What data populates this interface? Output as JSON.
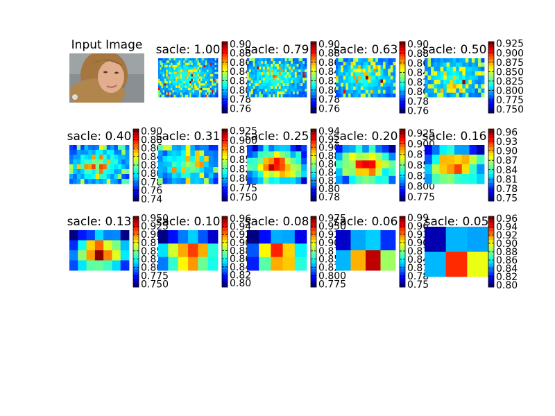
{
  "colormap": "jet",
  "input_panel": {
    "title": "Input Image",
    "image": "portrait photo of a young woman with long blonde hair looking down",
    "colors": {
      "background": "#8a8f93",
      "hair": "#a5773f",
      "skin": "#e2ae8e"
    }
  },
  "chart_data": [
    {
      "type": "heatmap",
      "title": "sacle: 1.00",
      "seed": 11,
      "grid": [
        38,
        17
      ],
      "kind": "edges",
      "colorbar": {
        "range": [
          0.75,
          0.905
        ],
        "ticks": [
          "0.90",
          "0.88",
          "0.86",
          "0.84",
          "0.82",
          "0.80",
          "0.78",
          "0.76"
        ]
      }
    },
    {
      "type": "heatmap",
      "title": "sacle: 0.79",
      "seed": 12,
      "grid": [
        30,
        14
      ],
      "kind": "edges",
      "colorbar": {
        "range": [
          0.75,
          0.905
        ],
        "ticks": [
          "0.90",
          "0.88",
          "0.86",
          "0.84",
          "0.82",
          "0.80",
          "0.78",
          "0.76"
        ]
      }
    },
    {
      "type": "heatmap",
      "title": "sacle: 0.63",
      "seed": 13,
      "grid": [
        24,
        11
      ],
      "kind": "edges",
      "colorbar": {
        "range": [
          0.755,
          0.905
        ],
        "ticks": [
          "0.90",
          "0.88",
          "0.86",
          "0.84",
          "0.82",
          "0.80",
          "0.78",
          "0.76"
        ]
      }
    },
    {
      "type": "heatmap",
      "title": "sacle: 0.50",
      "seed": 14,
      "grid": [
        19,
        9
      ],
      "kind": "edges",
      "colorbar": {
        "range": [
          0.74,
          0.93
        ],
        "ticks": [
          "0.925",
          "0.900",
          "0.875",
          "0.850",
          "0.825",
          "0.800",
          "0.775",
          "0.750"
        ]
      }
    },
    {
      "type": "heatmap",
      "title": "sacle: 0.40",
      "seed": 15,
      "grid": [
        16,
        8
      ],
      "kind": "mixed",
      "colorbar": {
        "range": [
          0.735,
          0.905
        ],
        "ticks": [
          "0.90",
          "0.88",
          "0.86",
          "0.84",
          "0.82",
          "0.80",
          "0.78",
          "0.76",
          "0.74"
        ]
      }
    },
    {
      "type": "heatmap",
      "title": "sacle: 0.31",
      "seed": 16,
      "grid": [
        13,
        7
      ],
      "kind": "mixed",
      "colorbar": {
        "range": [
          0.74,
          0.93
        ],
        "ticks": [
          "0.925",
          "0.900",
          "0.875",
          "0.850",
          "0.825",
          "0.800",
          "0.775",
          "0.750"
        ]
      }
    },
    {
      "type": "heatmap",
      "title": "sacle: 0.25",
      "seed": 17,
      "grid": [
        11,
        6
      ],
      "kind": "blobs",
      "colorbar": {
        "range": [
          0.77,
          0.945
        ],
        "ticks": [
          "0.94",
          "0.92",
          "0.90",
          "0.88",
          "0.86",
          "0.84",
          "0.82",
          "0.80",
          "0.78"
        ]
      }
    },
    {
      "type": "heatmap",
      "title": "sacle: 0.20",
      "seed": 18,
      "grid": [
        9,
        5
      ],
      "kind": "blobs",
      "colorbar": {
        "range": [
          0.765,
          0.935
        ],
        "ticks": [
          "0.925",
          "0.900",
          "0.875",
          "0.850",
          "0.825",
          "0.800",
          "0.775"
        ]
      }
    },
    {
      "type": "heatmap",
      "title": "sacle: 0.16",
      "seed": 19,
      "grid": [
        8,
        4
      ],
      "kind": "blobs",
      "colorbar": {
        "range": [
          0.74,
          0.97
        ],
        "ticks": [
          "0.96",
          "0.93",
          "0.90",
          "0.87",
          "0.84",
          "0.81",
          "0.78",
          "0.75"
        ]
      }
    },
    {
      "type": "heatmap",
      "title": "sacle: 0.13",
      "seed": 20,
      "grid": [
        7,
        4
      ],
      "kind": "smooth",
      "colorbar": {
        "range": [
          0.74,
          0.955
        ],
        "ticks": [
          "0.950",
          "0.925",
          "0.900",
          "0.875",
          "0.850",
          "0.825",
          "0.800",
          "0.775",
          "0.750"
        ]
      }
    },
    {
      "type": "heatmap",
      "title": "sacle: 0.10",
      "seed": 21,
      "grid": [
        6,
        3
      ],
      "kind": "smooth",
      "colorbar": {
        "range": [
          0.79,
          0.965
        ],
        "ticks": [
          "0.96",
          "0.94",
          "0.92",
          "0.90",
          "0.88",
          "0.86",
          "0.84",
          "0.82",
          "0.80"
        ]
      }
    },
    {
      "type": "heatmap",
      "title": "sacle: 0.08",
      "seed": 22,
      "grid": [
        5,
        3
      ],
      "kind": "smooth",
      "colorbar": {
        "range": [
          0.765,
          0.98
        ],
        "ticks": [
          "0.975",
          "0.950",
          "0.925",
          "0.900",
          "0.875",
          "0.850",
          "0.825",
          "0.800",
          "0.775"
        ]
      }
    },
    {
      "type": "heatmap",
      "title": "sacle: 0.06",
      "seed": 23,
      "grid": [
        4,
        2
      ],
      "kind": "smooth",
      "colorbar": {
        "range": [
          0.74,
          0.995
        ],
        "ticks": [
          "0.99",
          "0.96",
          "0.93",
          "0.90",
          "0.87",
          "0.84",
          "0.81",
          "0.78",
          "0.75"
        ]
      }
    },
    {
      "type": "heatmap",
      "title": "sacle: 0.05",
      "seed": 24,
      "grid": [
        3,
        2
      ],
      "kind": "smooth",
      "colorbar": {
        "range": [
          0.795,
          0.965
        ],
        "ticks": [
          "0.96",
          "0.94",
          "0.92",
          "0.90",
          "0.88",
          "0.86",
          "0.84",
          "0.82",
          "0.80"
        ]
      }
    }
  ]
}
